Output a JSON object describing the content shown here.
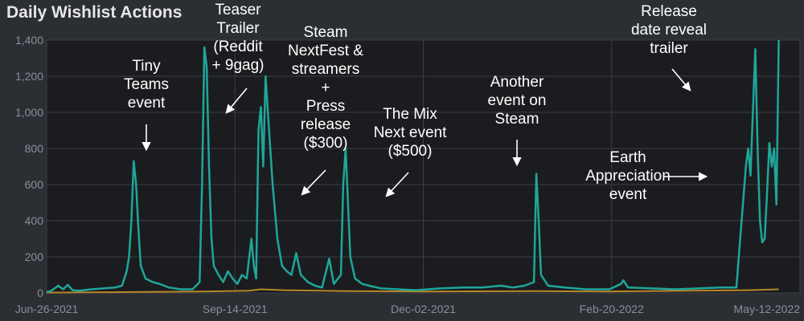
{
  "chart_data": {
    "type": "line",
    "title": "Daily Wishlist Actions",
    "xlabel": "",
    "ylabel": "",
    "x_ticks": [
      "Jun-26-2021",
      "Sep-14-2021",
      "Dec-02-2021",
      "Feb-20-2022",
      "May-12-2022"
    ],
    "y_ticks": [
      "0",
      "200",
      "400",
      "600",
      "800",
      "1,000",
      "1,200",
      "1,400"
    ],
    "ylim": [
      0,
      1400
    ],
    "xlim": [
      "2021-06-26",
      "2022-05-12"
    ],
    "grid": true,
    "series": [
      {
        "color": "#1fa69a",
        "points": [
          [
            "2021-06-26",
            5
          ],
          [
            "2021-06-28",
            12
          ],
          [
            "2021-07-01",
            40
          ],
          [
            "2021-07-03",
            20
          ],
          [
            "2021-07-05",
            45
          ],
          [
            "2021-07-07",
            15
          ],
          [
            "2021-07-10",
            12
          ],
          [
            "2021-07-15",
            20
          ],
          [
            "2021-07-20",
            25
          ],
          [
            "2021-07-25",
            30
          ],
          [
            "2021-07-28",
            40
          ],
          [
            "2021-07-30",
            120
          ],
          [
            "2021-07-31",
            200
          ],
          [
            "2021-08-01",
            400
          ],
          [
            "2021-08-02",
            730
          ],
          [
            "2021-08-03",
            600
          ],
          [
            "2021-08-04",
            350
          ],
          [
            "2021-08-05",
            150
          ],
          [
            "2021-08-07",
            80
          ],
          [
            "2021-08-10",
            60
          ],
          [
            "2021-08-13",
            50
          ],
          [
            "2021-08-17",
            30
          ],
          [
            "2021-08-22",
            20
          ],
          [
            "2021-08-27",
            20
          ],
          [
            "2021-08-30",
            60
          ],
          [
            "2021-08-31",
            600
          ],
          [
            "2021-09-01",
            1360
          ],
          [
            "2021-09-02",
            1250
          ],
          [
            "2021-09-03",
            700
          ],
          [
            "2021-09-04",
            300
          ],
          [
            "2021-09-05",
            150
          ],
          [
            "2021-09-07",
            100
          ],
          [
            "2021-09-09",
            60
          ],
          [
            "2021-09-11",
            120
          ],
          [
            "2021-09-13",
            80
          ],
          [
            "2021-09-15",
            50
          ],
          [
            "2021-09-17",
            100
          ],
          [
            "2021-09-19",
            80
          ],
          [
            "2021-09-21",
            300
          ],
          [
            "2021-09-22",
            150
          ],
          [
            "2021-09-23",
            80
          ],
          [
            "2021-09-24",
            900
          ],
          [
            "2021-09-25",
            1030
          ],
          [
            "2021-09-26",
            700
          ],
          [
            "2021-09-27",
            1200
          ],
          [
            "2021-09-28",
            1000
          ],
          [
            "2021-09-30",
            600
          ],
          [
            "2021-10-02",
            300
          ],
          [
            "2021-10-04",
            150
          ],
          [
            "2021-10-06",
            120
          ],
          [
            "2021-10-08",
            100
          ],
          [
            "2021-10-10",
            220
          ],
          [
            "2021-10-12",
            100
          ],
          [
            "2021-10-15",
            60
          ],
          [
            "2021-10-18",
            40
          ],
          [
            "2021-10-21",
            30
          ],
          [
            "2021-10-24",
            190
          ],
          [
            "2021-10-26",
            50
          ],
          [
            "2021-10-29",
            100
          ],
          [
            "2021-10-30",
            600
          ],
          [
            "2021-10-31",
            800
          ],
          [
            "2021-11-01",
            500
          ],
          [
            "2021-11-02",
            200
          ],
          [
            "2021-11-04",
            80
          ],
          [
            "2021-11-07",
            50
          ],
          [
            "2021-11-10",
            40
          ],
          [
            "2021-11-15",
            25
          ],
          [
            "2021-11-22",
            20
          ],
          [
            "2021-11-30",
            15
          ],
          [
            "2021-12-10",
            25
          ],
          [
            "2021-12-20",
            30
          ],
          [
            "2021-12-28",
            30
          ],
          [
            "2022-01-05",
            40
          ],
          [
            "2022-01-10",
            30
          ],
          [
            "2022-01-15",
            40
          ],
          [
            "2022-01-19",
            60
          ],
          [
            "2022-01-20",
            660
          ],
          [
            "2022-01-21",
            400
          ],
          [
            "2022-01-22",
            100
          ],
          [
            "2022-01-25",
            40
          ],
          [
            "2022-02-01",
            30
          ],
          [
            "2022-02-10",
            20
          ],
          [
            "2022-02-20",
            20
          ],
          [
            "2022-02-25",
            50
          ],
          [
            "2022-02-26",
            70
          ],
          [
            "2022-02-28",
            30
          ],
          [
            "2022-03-10",
            25
          ],
          [
            "2022-03-20",
            20
          ],
          [
            "2022-03-30",
            25
          ],
          [
            "2022-04-08",
            30
          ],
          [
            "2022-04-15",
            30
          ],
          [
            "2022-04-19",
            700
          ],
          [
            "2022-04-20",
            800
          ],
          [
            "2022-04-21",
            650
          ],
          [
            "2022-04-22",
            1000
          ],
          [
            "2022-04-23",
            1350
          ],
          [
            "2022-04-24",
            800
          ],
          [
            "2022-04-25",
            400
          ],
          [
            "2022-04-26",
            280
          ],
          [
            "2022-04-27",
            300
          ],
          [
            "2022-04-28",
            550
          ],
          [
            "2022-04-29",
            830
          ],
          [
            "2022-04-30",
            700
          ],
          [
            "2022-05-01",
            800
          ],
          [
            "2022-05-02",
            490
          ],
          [
            "2022-05-03",
            1400
          ]
        ]
      },
      {
        "color": "#b8872a",
        "points": [
          [
            "2021-06-26",
            2
          ],
          [
            "2021-07-15",
            3
          ],
          [
            "2021-08-01",
            5
          ],
          [
            "2021-09-01",
            8
          ],
          [
            "2021-09-20",
            12
          ],
          [
            "2021-09-25",
            20
          ],
          [
            "2021-10-05",
            15
          ],
          [
            "2021-11-01",
            10
          ],
          [
            "2021-12-01",
            8
          ],
          [
            "2022-01-20",
            10
          ],
          [
            "2022-02-20",
            8
          ],
          [
            "2022-04-20",
            15
          ],
          [
            "2022-05-03",
            20
          ]
        ]
      }
    ],
    "annotations": [
      {
        "lines": [
          "Tiny",
          "Teams",
          "event"
        ]
      },
      {
        "lines": [
          "Teaser",
          "Trailer",
          "(Reddit",
          "+ 9gag)"
        ]
      },
      {
        "lines": [
          "Steam",
          "NextFest &",
          "streamers",
          "+",
          "Press",
          "release",
          "($300)"
        ]
      },
      {
        "lines": [
          "The Mix",
          "Next event",
          "($500)"
        ]
      },
      {
        "lines": [
          "Another",
          "event on",
          "Steam"
        ]
      },
      {
        "lines": [
          "Earth",
          "Appreciation",
          "event"
        ]
      },
      {
        "lines": [
          "Release",
          "date reveal",
          "trailer"
        ]
      }
    ]
  }
}
